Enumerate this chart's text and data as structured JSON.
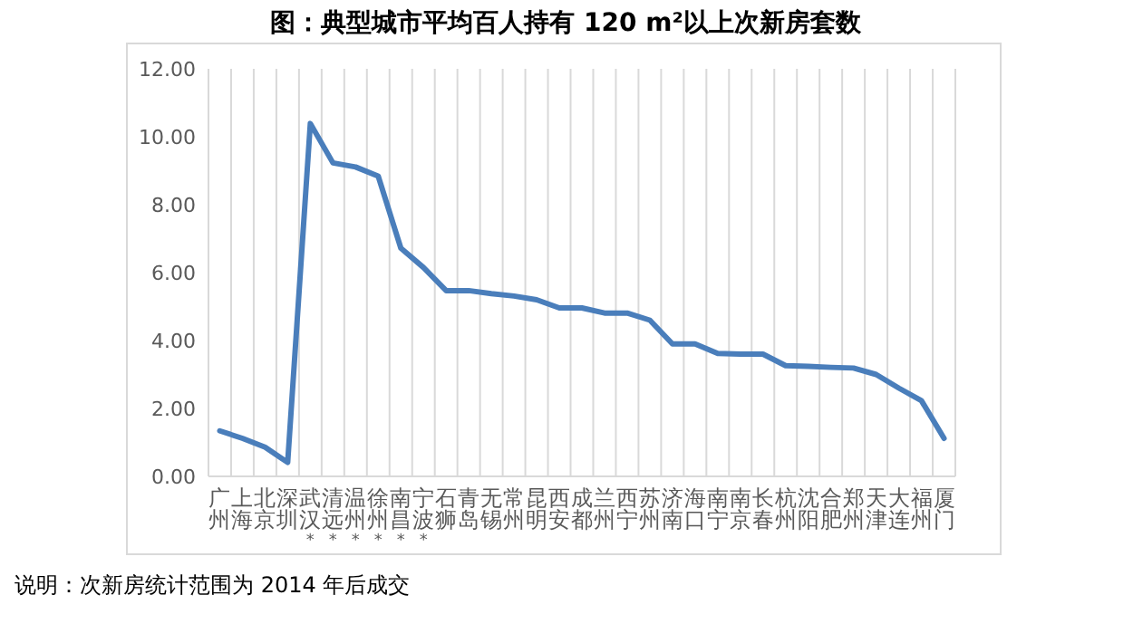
{
  "chart_data": {
    "type": "line",
    "title": "图：典型城市平均百人持有 120 m²以上次新房套数",
    "categories": [
      "广州",
      "上海",
      "北京",
      "深圳",
      "武汉*",
      "清远*",
      "温州*",
      "徐州*",
      "南昌*",
      "宁波*",
      "石狮",
      "青岛",
      "无锡",
      "常州",
      "昆明",
      "西安",
      "成都",
      "兰州",
      "西宁",
      "苏州",
      "济南",
      "海口",
      "南宁",
      "南京",
      "长春",
      "杭州",
      "沈阳",
      "合肥",
      "郑州",
      "天津",
      "大连",
      "福州",
      "厦门"
    ],
    "series": [
      {
        "color": "#4a7ebb",
        "values": [
          1.34,
          1.12,
          0.86,
          0.41,
          10.39,
          9.23,
          9.11,
          8.84,
          6.72,
          6.15,
          5.47,
          5.47,
          5.38,
          5.31,
          5.2,
          4.96,
          4.96,
          4.81,
          4.81,
          4.6,
          3.9,
          3.9,
          3.62,
          3.6,
          3.6,
          3.26,
          3.24,
          3.21,
          3.19,
          3.0,
          2.6,
          2.23,
          1.12
        ]
      }
    ],
    "ylim": [
      0,
      12
    ],
    "yticks": [
      {
        "value": 0,
        "label": "0.00"
      },
      {
        "value": 2,
        "label": "2.00"
      },
      {
        "value": 4,
        "label": "4.00"
      },
      {
        "value": 6,
        "label": "6.00"
      },
      {
        "value": 8,
        "label": "8.00"
      },
      {
        "value": 10,
        "label": "10.00"
      },
      {
        "value": 12,
        "label": "12.00"
      }
    ],
    "grid": "x",
    "annotations": [
      "说明：次新房统计范围为 2014 年后成交"
    ]
  }
}
